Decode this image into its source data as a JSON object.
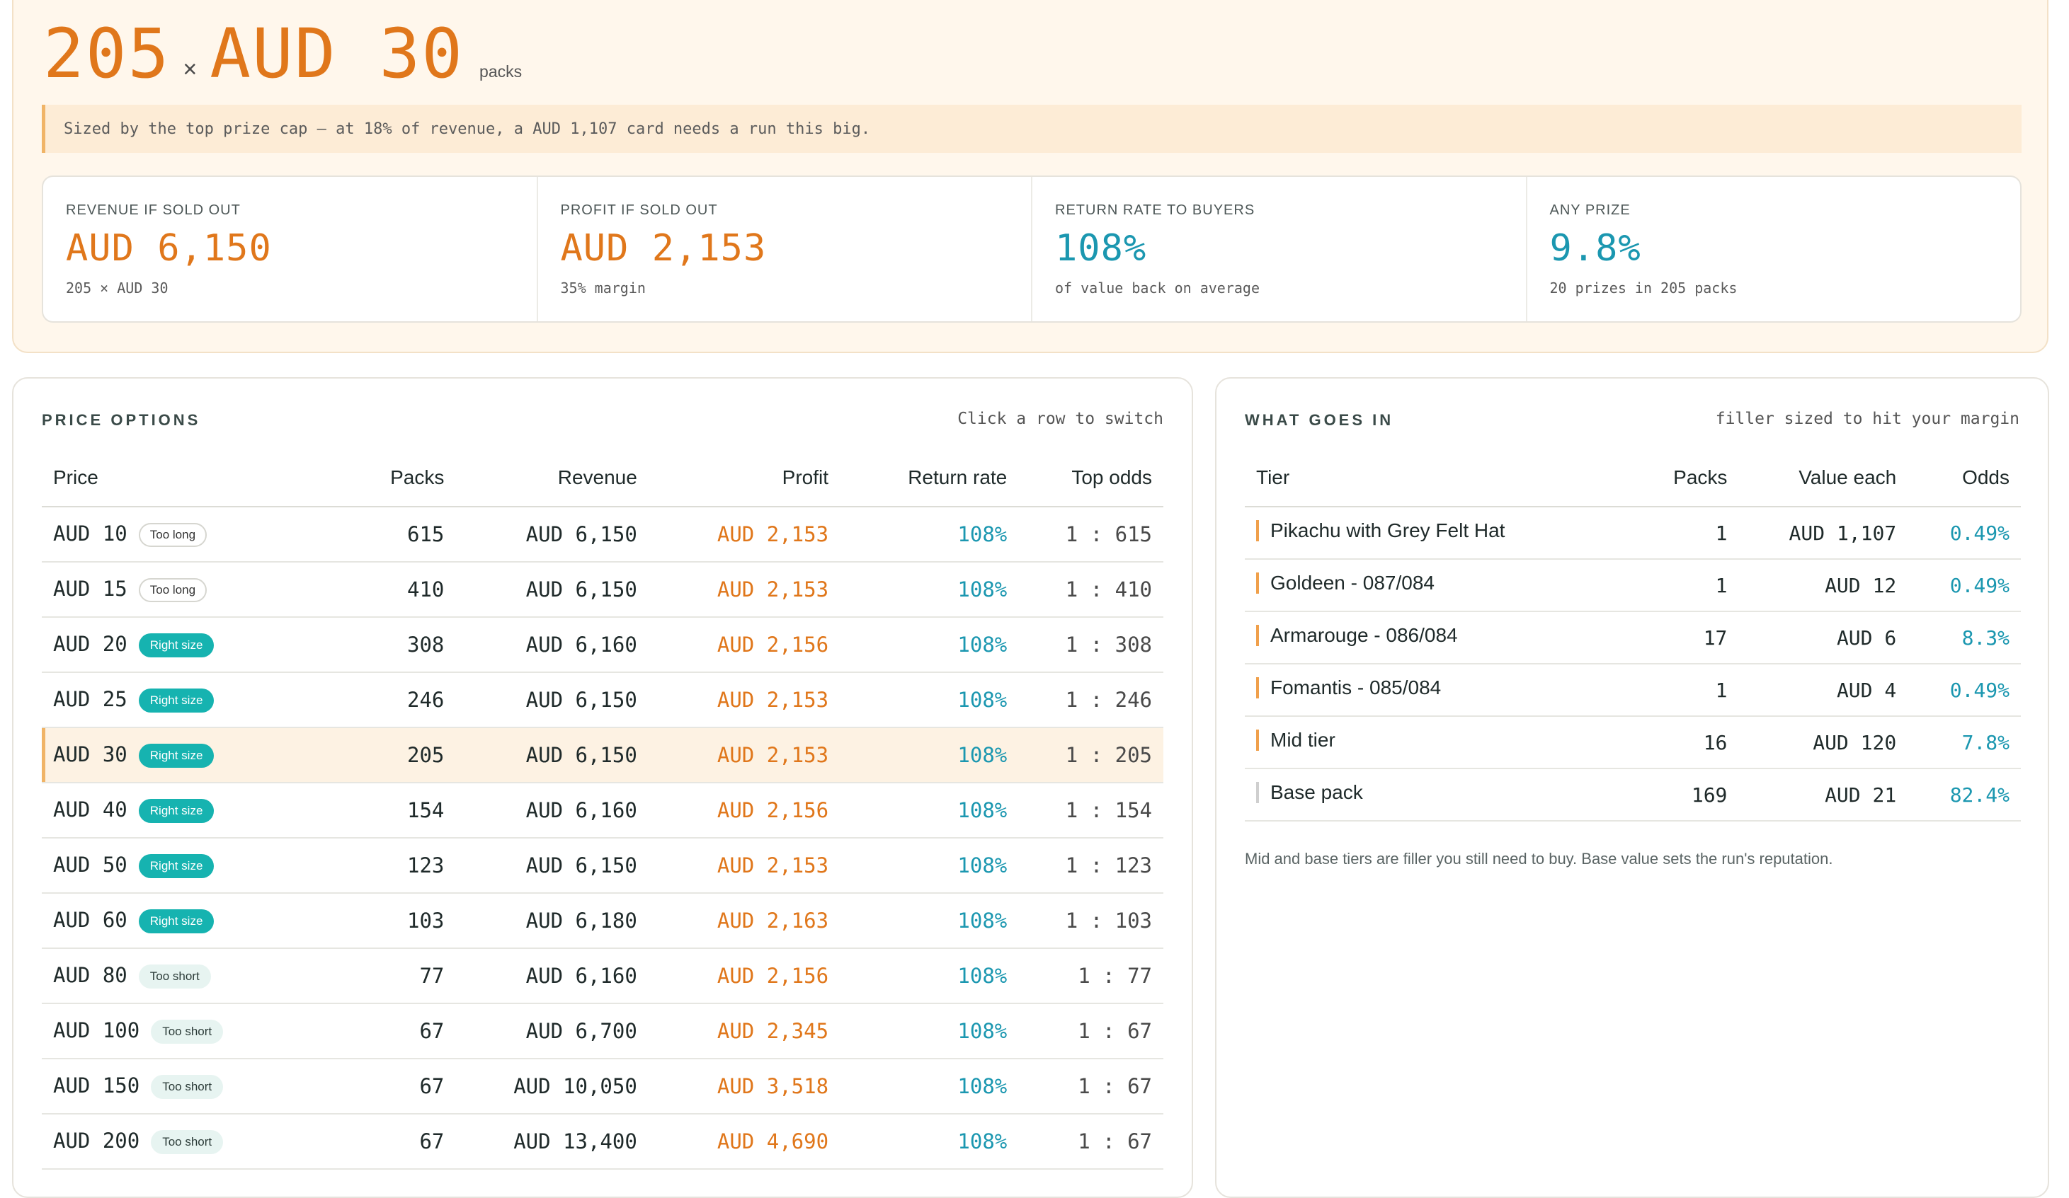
{
  "summary": {
    "packs": "205",
    "times": "×",
    "price": "AUD 30",
    "packs_word": "packs",
    "callout": "Sized by the top prize cap — at 18% of revenue, a AUD 1,107 card needs a run this big.",
    "stats": [
      {
        "label": "REVENUE IF SOLD OUT",
        "value": "AUD 6,150",
        "sub": "205 × AUD 30",
        "color": "#e0771b"
      },
      {
        "label": "PROFIT IF SOLD OUT",
        "value": "AUD 2,153",
        "sub": "35% margin",
        "color": "#e0771b"
      },
      {
        "label": "RETURN RATE TO BUYERS",
        "value": "108%",
        "sub": "of value back on average",
        "color": "#1b97b0"
      },
      {
        "label": "ANY PRIZE",
        "value": "9.8%",
        "sub": "20 prizes in 205 packs",
        "color": "#1b97b0"
      }
    ]
  },
  "price_options": {
    "title": "PRICE OPTIONS",
    "hint": "Click a row to switch",
    "columns": [
      "Price",
      "Packs",
      "Revenue",
      "Profit",
      "Return rate",
      "Top odds"
    ],
    "selected_index": 4,
    "rows": [
      {
        "price": "AUD 10",
        "badge": "Too long",
        "badge_type": "long",
        "packs": "615",
        "revenue": "AUD 6,150",
        "profit": "AUD 2,153",
        "return_rate": "108%",
        "top_odds": "1 : 615"
      },
      {
        "price": "AUD 15",
        "badge": "Too long",
        "badge_type": "long",
        "packs": "410",
        "revenue": "AUD 6,150",
        "profit": "AUD 2,153",
        "return_rate": "108%",
        "top_odds": "1 : 410"
      },
      {
        "price": "AUD 20",
        "badge": "Right size",
        "badge_type": "right",
        "packs": "308",
        "revenue": "AUD 6,160",
        "profit": "AUD 2,156",
        "return_rate": "108%",
        "top_odds": "1 : 308"
      },
      {
        "price": "AUD 25",
        "badge": "Right size",
        "badge_type": "right",
        "packs": "246",
        "revenue": "AUD 6,150",
        "profit": "AUD 2,153",
        "return_rate": "108%",
        "top_odds": "1 : 246"
      },
      {
        "price": "AUD 30",
        "badge": "Right size",
        "badge_type": "right",
        "packs": "205",
        "revenue": "AUD 6,150",
        "profit": "AUD 2,153",
        "return_rate": "108%",
        "top_odds": "1 : 205"
      },
      {
        "price": "AUD 40",
        "badge": "Right size",
        "badge_type": "right",
        "packs": "154",
        "revenue": "AUD 6,160",
        "profit": "AUD 2,156",
        "return_rate": "108%",
        "top_odds": "1 : 154"
      },
      {
        "price": "AUD 50",
        "badge": "Right size",
        "badge_type": "right",
        "packs": "123",
        "revenue": "AUD 6,150",
        "profit": "AUD 2,153",
        "return_rate": "108%",
        "top_odds": "1 : 123"
      },
      {
        "price": "AUD 60",
        "badge": "Right size",
        "badge_type": "right",
        "packs": "103",
        "revenue": "AUD 6,180",
        "profit": "AUD 2,163",
        "return_rate": "108%",
        "top_odds": "1 : 103"
      },
      {
        "price": "AUD 80",
        "badge": "Too short",
        "badge_type": "short",
        "packs": "77",
        "revenue": "AUD 6,160",
        "profit": "AUD 2,156",
        "return_rate": "108%",
        "top_odds": "1 : 77"
      },
      {
        "price": "AUD 100",
        "badge": "Too short",
        "badge_type": "short",
        "packs": "67",
        "revenue": "AUD 6,700",
        "profit": "AUD 2,345",
        "return_rate": "108%",
        "top_odds": "1 : 67"
      },
      {
        "price": "AUD 150",
        "badge": "Too short",
        "badge_type": "short",
        "packs": "67",
        "revenue": "AUD 10,050",
        "profit": "AUD 3,518",
        "return_rate": "108%",
        "top_odds": "1 : 67"
      },
      {
        "price": "AUD 200",
        "badge": "Too short",
        "badge_type": "short",
        "packs": "67",
        "revenue": "AUD 13,400",
        "profit": "AUD 4,690",
        "return_rate": "108%",
        "top_odds": "1 : 67"
      }
    ]
  },
  "what_goes_in": {
    "title": "WHAT GOES IN",
    "hint": "filler sized to hit your margin",
    "columns": [
      "Tier",
      "Packs",
      "Value each",
      "Odds"
    ],
    "rows": [
      {
        "tier": "Pikachu with Grey Felt Hat",
        "packs": "1",
        "value": "AUD 1,107",
        "odds": "0.49%",
        "bar_color": "#f0a04b"
      },
      {
        "tier": "Goldeen - 087/084",
        "packs": "1",
        "value": "AUD 12",
        "odds": "0.49%",
        "bar_color": "#f0a04b"
      },
      {
        "tier": "Armarouge - 086/084",
        "packs": "17",
        "value": "AUD 6",
        "odds": "8.3%",
        "bar_color": "#f0a04b"
      },
      {
        "tier": "Fomantis - 085/084",
        "packs": "1",
        "value": "AUD 4",
        "odds": "0.49%",
        "bar_color": "#f0a04b"
      },
      {
        "tier": "Mid tier",
        "packs": "16",
        "value": "AUD 120",
        "odds": "7.8%",
        "bar_color": "#f0a04b"
      },
      {
        "tier": "Base pack",
        "packs": "169",
        "value": "AUD 21",
        "odds": "82.4%",
        "bar_color": "#cfcfcf"
      }
    ],
    "note": "Mid and base tiers are filler you still need to buy. Base value sets the run's reputation."
  }
}
